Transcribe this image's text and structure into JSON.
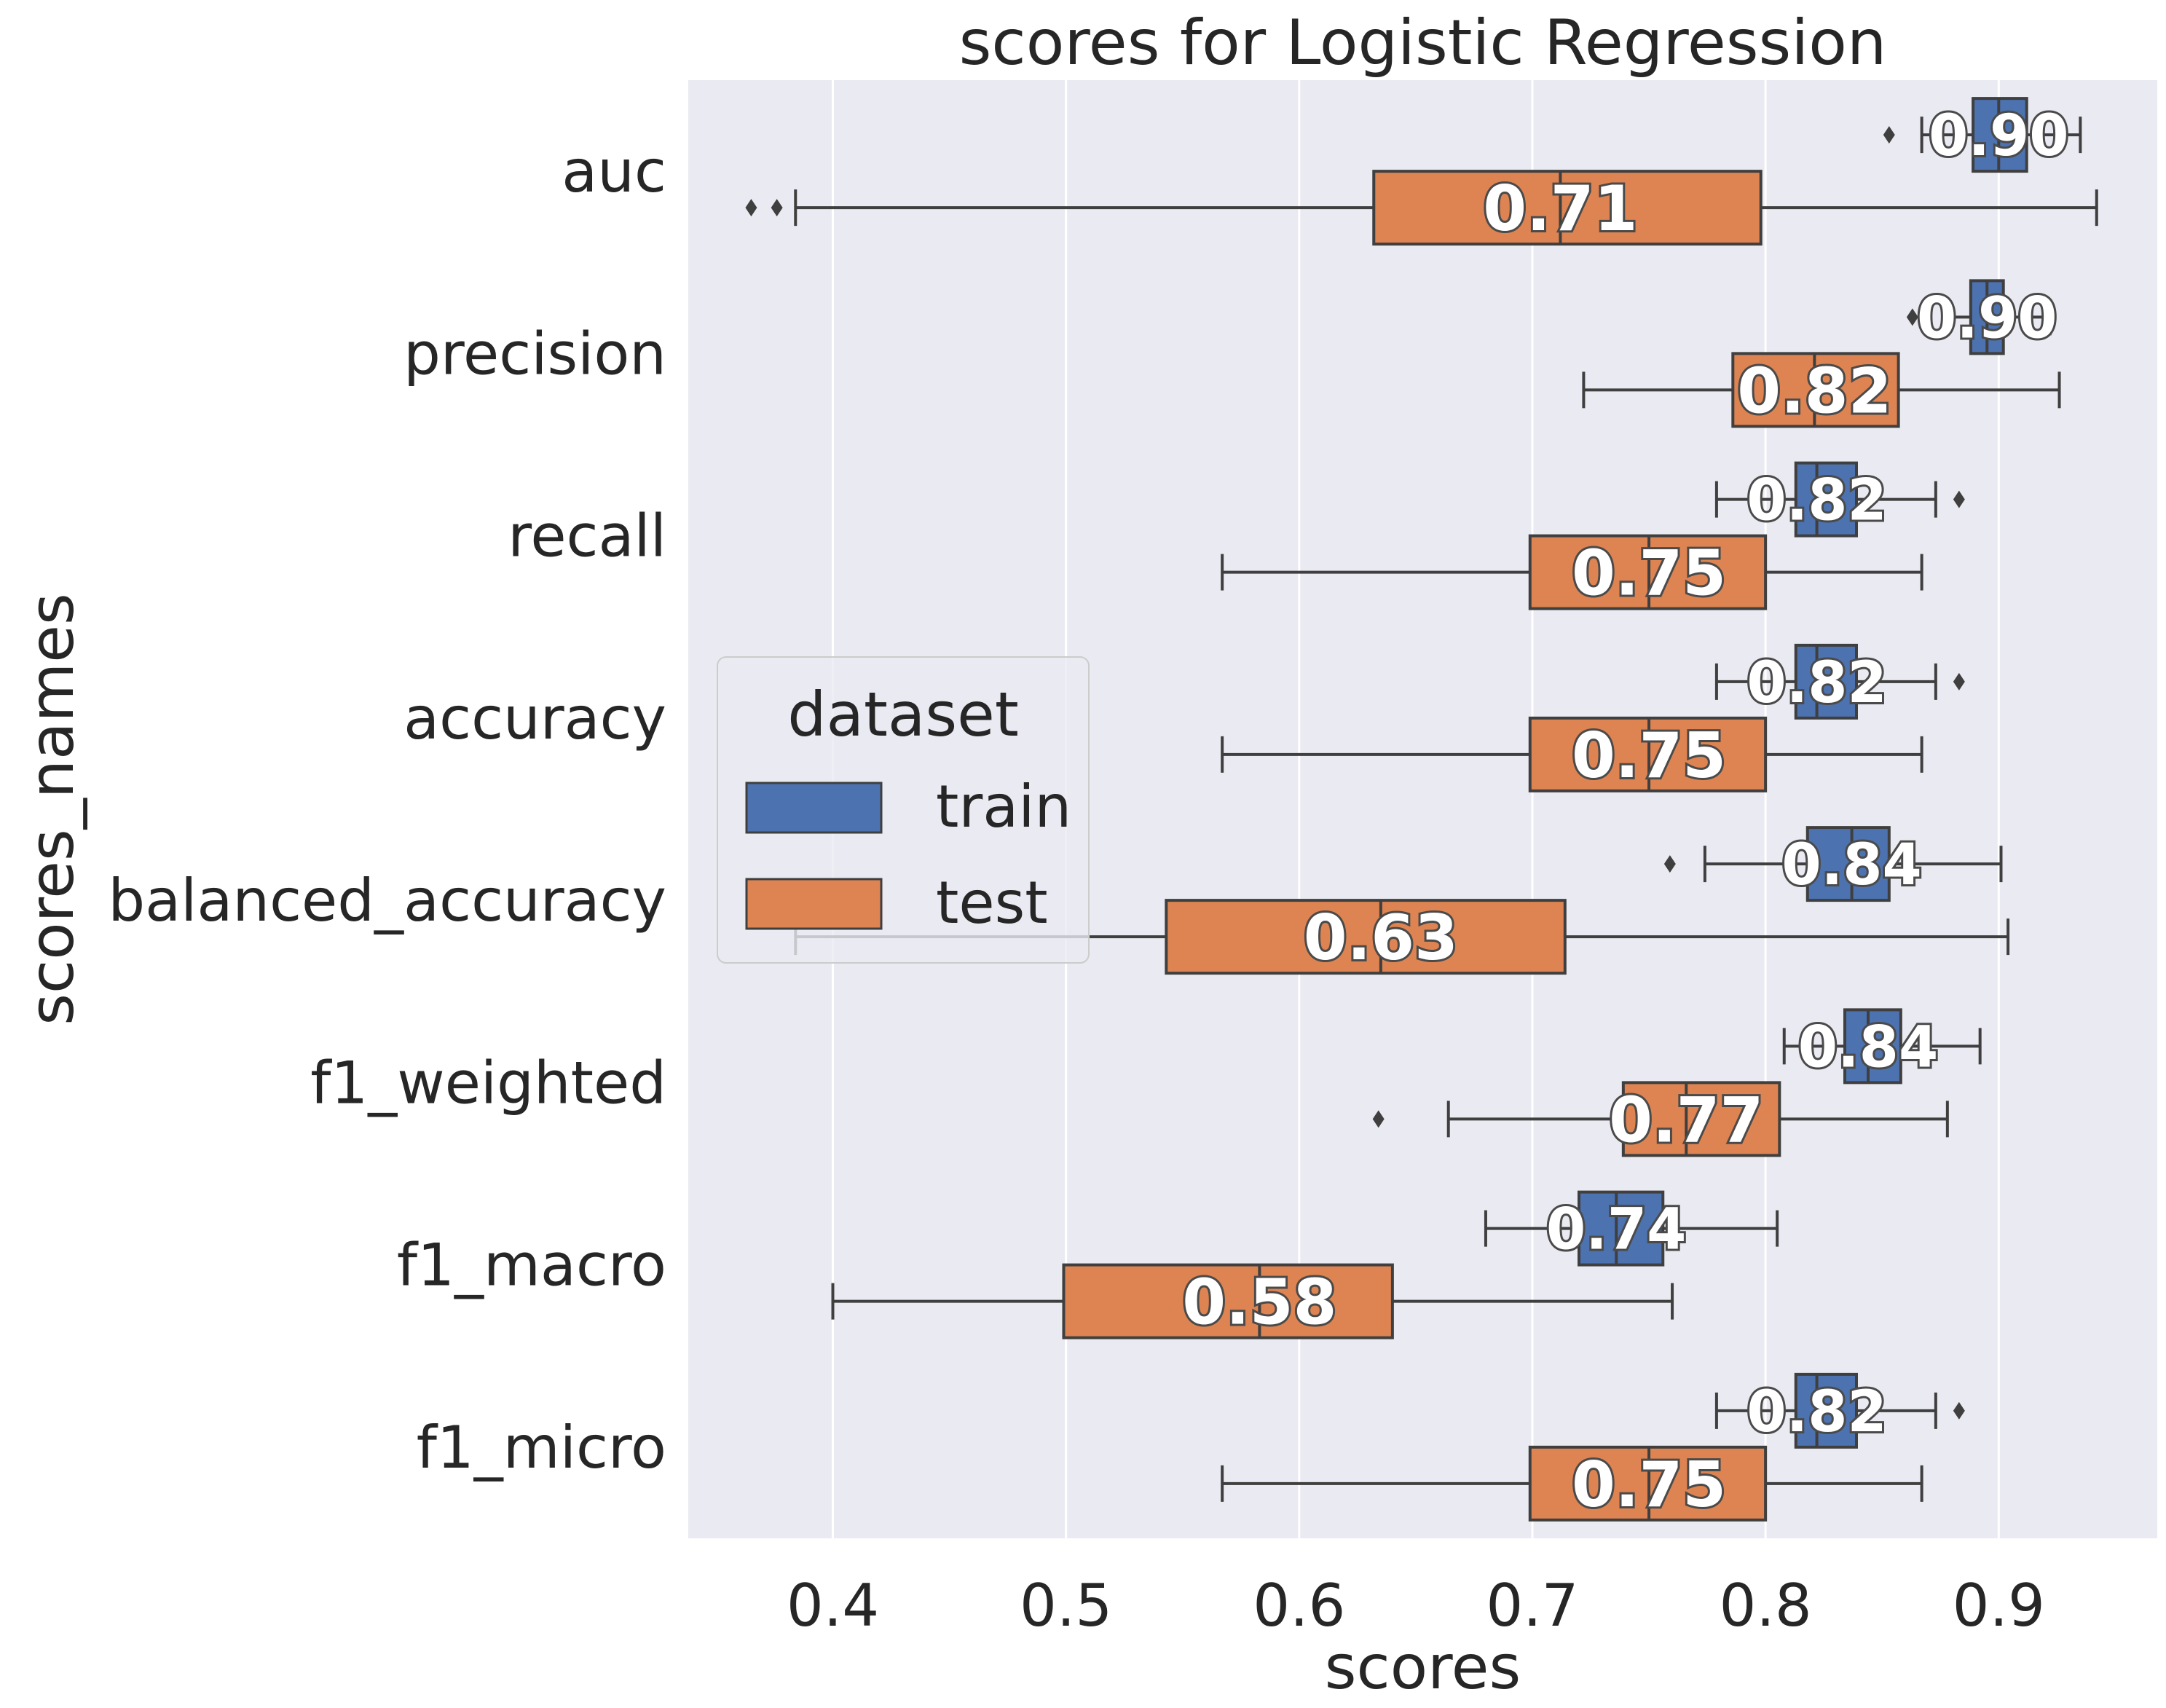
{
  "chart_data": {
    "type": "boxplot",
    "orientation": "horizontal",
    "title": "scores for Logistic Regression",
    "xlabel": "scores",
    "ylabel": "scores_names",
    "xlim": [
      0.338,
      0.968
    ],
    "xticks": [
      0.4,
      0.5,
      0.6,
      0.7,
      0.8,
      0.9
    ],
    "xtick_labels": [
      "0.4",
      "0.5",
      "0.6",
      "0.7",
      "0.8",
      "0.9"
    ],
    "grid": true,
    "legend": {
      "title": "dataset",
      "placement": "center-left",
      "entries": [
        {
          "label": "train",
          "color": "#4c72b0"
        },
        {
          "label": "test",
          "color": "#dd8452"
        }
      ]
    },
    "categories": [
      "auc",
      "precision",
      "recall",
      "accuracy",
      "balanced_accuracy",
      "f1_weighted",
      "f1_macro",
      "f1_micro"
    ],
    "series": [
      {
        "name": "train",
        "color": "#4c72b0",
        "boxes": [
          {
            "whisker_low": 0.867,
            "q1": 0.889,
            "median": 0.9,
            "q3": 0.912,
            "whisker_high": 0.935,
            "outliers": [
              0.853
            ],
            "label": "0.90"
          },
          {
            "whisker_low": 0.877,
            "q1": 0.888,
            "median": 0.895,
            "q3": 0.902,
            "whisker_high": 0.922,
            "outliers": [
              0.863
            ],
            "label": "0.90"
          },
          {
            "whisker_low": 0.779,
            "q1": 0.813,
            "median": 0.822,
            "q3": 0.839,
            "whisker_high": 0.873,
            "outliers": [
              0.883
            ],
            "label": "0.82"
          },
          {
            "whisker_low": 0.779,
            "q1": 0.813,
            "median": 0.822,
            "q3": 0.839,
            "whisker_high": 0.873,
            "outliers": [
              0.883
            ],
            "label": "0.82"
          },
          {
            "whisker_low": 0.774,
            "q1": 0.818,
            "median": 0.837,
            "q3": 0.853,
            "whisker_high": 0.901,
            "outliers": [
              0.759
            ],
            "label": "0.84"
          },
          {
            "whisker_low": 0.808,
            "q1": 0.834,
            "median": 0.844,
            "q3": 0.858,
            "whisker_high": 0.892,
            "outliers": [],
            "label": "0.84"
          },
          {
            "whisker_low": 0.68,
            "q1": 0.72,
            "median": 0.736,
            "q3": 0.756,
            "whisker_high": 0.805,
            "outliers": [],
            "label": "0.74"
          },
          {
            "whisker_low": 0.779,
            "q1": 0.813,
            "median": 0.822,
            "q3": 0.839,
            "whisker_high": 0.873,
            "outliers": [
              0.883
            ],
            "label": "0.82"
          }
        ]
      },
      {
        "name": "test",
        "color": "#dd8452",
        "boxes": [
          {
            "whisker_low": 0.384,
            "q1": 0.632,
            "median": 0.712,
            "q3": 0.798,
            "whisker_high": 0.942,
            "outliers": [
              0.365,
              0.376
            ],
            "label": "0.71"
          },
          {
            "whisker_low": 0.722,
            "q1": 0.786,
            "median": 0.821,
            "q3": 0.857,
            "whisker_high": 0.926,
            "outliers": [],
            "label": "0.82"
          },
          {
            "whisker_low": 0.567,
            "q1": 0.699,
            "median": 0.75,
            "q3": 0.8,
            "whisker_high": 0.867,
            "outliers": [],
            "label": "0.75"
          },
          {
            "whisker_low": 0.567,
            "q1": 0.699,
            "median": 0.75,
            "q3": 0.8,
            "whisker_high": 0.867,
            "outliers": [],
            "label": "0.75"
          },
          {
            "whisker_low": 0.384,
            "q1": 0.543,
            "median": 0.635,
            "q3": 0.714,
            "whisker_high": 0.904,
            "outliers": [],
            "label": "0.63"
          },
          {
            "whisker_low": 0.664,
            "q1": 0.739,
            "median": 0.766,
            "q3": 0.806,
            "whisker_high": 0.878,
            "outliers": [
              0.634
            ],
            "label": "0.77"
          },
          {
            "whisker_low": 0.4,
            "q1": 0.499,
            "median": 0.583,
            "q3": 0.64,
            "whisker_high": 0.76,
            "outliers": [],
            "label": "0.58"
          },
          {
            "whisker_low": 0.567,
            "q1": 0.699,
            "median": 0.75,
            "q3": 0.8,
            "whisker_high": 0.867,
            "outliers": [],
            "label": "0.75"
          }
        ]
      }
    ]
  }
}
